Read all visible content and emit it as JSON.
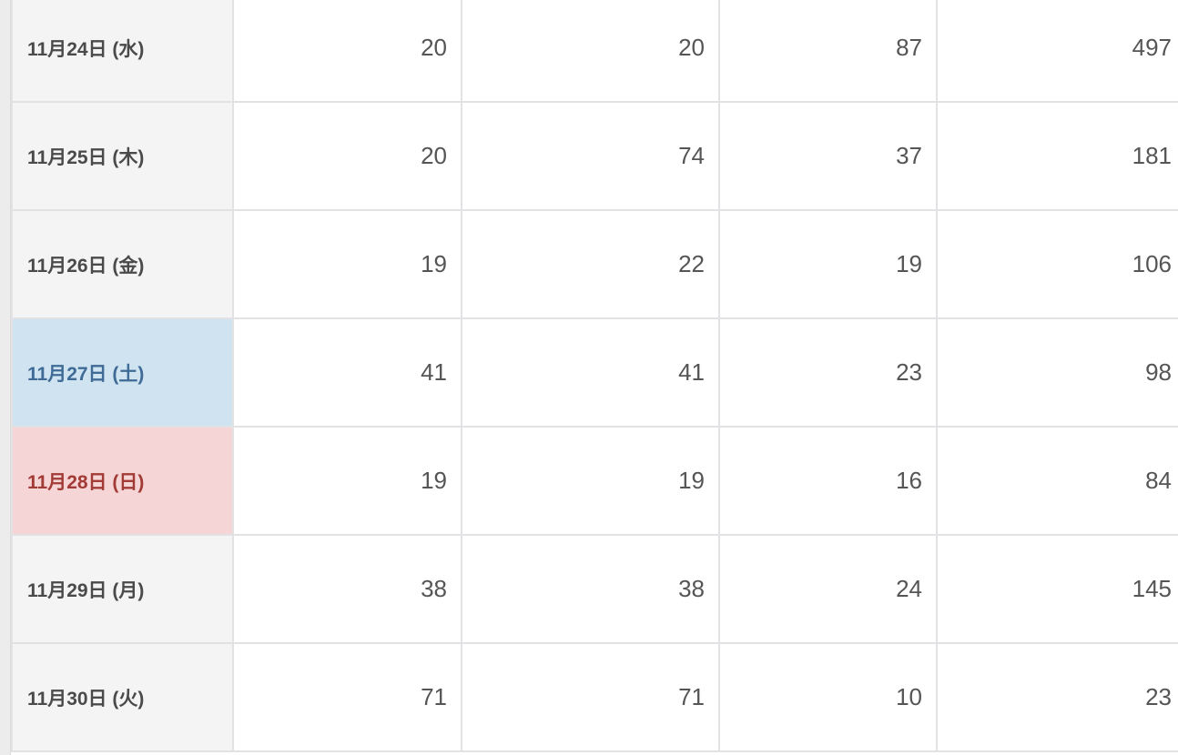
{
  "rows": [
    {
      "date": "11月24日 (水)",
      "day_type": "weekday",
      "values": [
        "20",
        "20",
        "87",
        "497"
      ]
    },
    {
      "date": "11月25日 (木)",
      "day_type": "weekday",
      "values": [
        "20",
        "74",
        "37",
        "181"
      ]
    },
    {
      "date": "11月26日 (金)",
      "day_type": "weekday",
      "values": [
        "19",
        "22",
        "19",
        "106"
      ]
    },
    {
      "date": "11月27日 (土)",
      "day_type": "saturday",
      "values": [
        "41",
        "41",
        "23",
        "98"
      ]
    },
    {
      "date": "11月28日 (日)",
      "day_type": "sunday",
      "values": [
        "19",
        "19",
        "16",
        "84"
      ]
    },
    {
      "date": "11月29日 (月)",
      "day_type": "weekday",
      "values": [
        "38",
        "38",
        "24",
        "145"
      ]
    },
    {
      "date": "11月30日 (火)",
      "day_type": "weekday",
      "values": [
        "71",
        "71",
        "10",
        "23"
      ]
    }
  ],
  "colors": {
    "saturday_bg": "#cfe3f1",
    "saturday_text": "#3f6b96",
    "sunday_bg": "#f6d5d6",
    "sunday_text": "#a23a36"
  }
}
